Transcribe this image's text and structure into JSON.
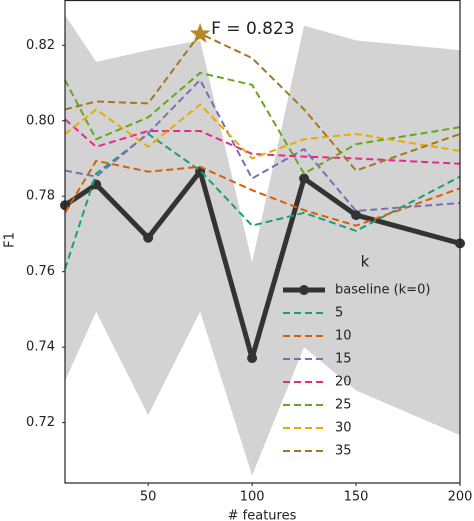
{
  "chart_data": {
    "type": "line",
    "xlabel": "# features",
    "ylabel": "F1",
    "x": [
      10,
      25,
      50,
      75,
      100,
      125,
      150,
      200
    ],
    "xlim": [
      10,
      200
    ],
    "ylim": [
      0.704,
      0.832
    ],
    "xticks": [
      50,
      100,
      150,
      200
    ],
    "yticks": [
      0.72,
      0.74,
      0.76,
      0.78,
      {
        "value": 0.8,
        "label": "0.80"
      },
      0.82
    ],
    "band": {
      "color": "#d3d3d3",
      "upper": [
        0.828,
        0.8156,
        0.8187,
        0.8213,
        0.7625,
        0.8252,
        0.8213,
        0.8187
      ],
      "lower": [
        0.731,
        0.7494,
        0.722,
        0.7494,
        0.706,
        0.74,
        0.7285,
        0.7167
      ]
    },
    "legend_title": "k",
    "legend": "lower right",
    "series": [
      {
        "name": "baseline (k=0)",
        "color": "#333333",
        "linestyle": "solid",
        "values": [
          0.7776,
          0.7831,
          0.769,
          0.7866,
          0.7371,
          0.7847,
          0.775,
          0.7675
        ]
      },
      {
        "name": "5",
        "color": "#1b9e77",
        "linestyle": "dashed",
        "values": [
          0.7607,
          0.786,
          0.7965,
          0.7868,
          0.7722,
          0.7756,
          0.7708,
          0.7852
        ]
      },
      {
        "name": "10",
        "color": "#d95f02",
        "linestyle": "dashed",
        "values": [
          0.7756,
          0.7894,
          0.7865,
          0.7878,
          0.7816,
          0.7763,
          0.7722,
          0.7821
        ]
      },
      {
        "name": "15",
        "color": "#7570b3",
        "linestyle": "dashed",
        "values": [
          0.7868,
          0.7852,
          0.7967,
          0.8108,
          0.7847,
          0.7925,
          0.7761,
          0.7782
        ]
      },
      {
        "name": "20",
        "color": "#e7298a",
        "linestyle": "dashed",
        "values": [
          0.8004,
          0.7931,
          0.7973,
          0.7973,
          0.7912,
          0.7905,
          0.79,
          0.7886
        ]
      },
      {
        "name": "25",
        "color": "#66a61e",
        "linestyle": "dashed",
        "values": [
          0.8108,
          0.7951,
          0.8009,
          0.8127,
          0.8095,
          0.786,
          0.7938,
          0.7983
        ]
      },
      {
        "name": "30",
        "color": "#e6ab02",
        "linestyle": "dashed",
        "values": [
          0.7965,
          0.803,
          0.7931,
          0.8043,
          0.79,
          0.7951,
          0.7965,
          0.792
        ]
      },
      {
        "name": "35",
        "color": "#a6761d",
        "linestyle": "dashed",
        "values": [
          0.803,
          0.8051,
          0.8046,
          0.8231,
          0.8166,
          0.803,
          0.7868,
          0.7965
        ]
      }
    ],
    "annotation": {
      "text": "F = 0.823",
      "x": 75,
      "y": 0.823,
      "color": "#b8862b"
    }
  }
}
